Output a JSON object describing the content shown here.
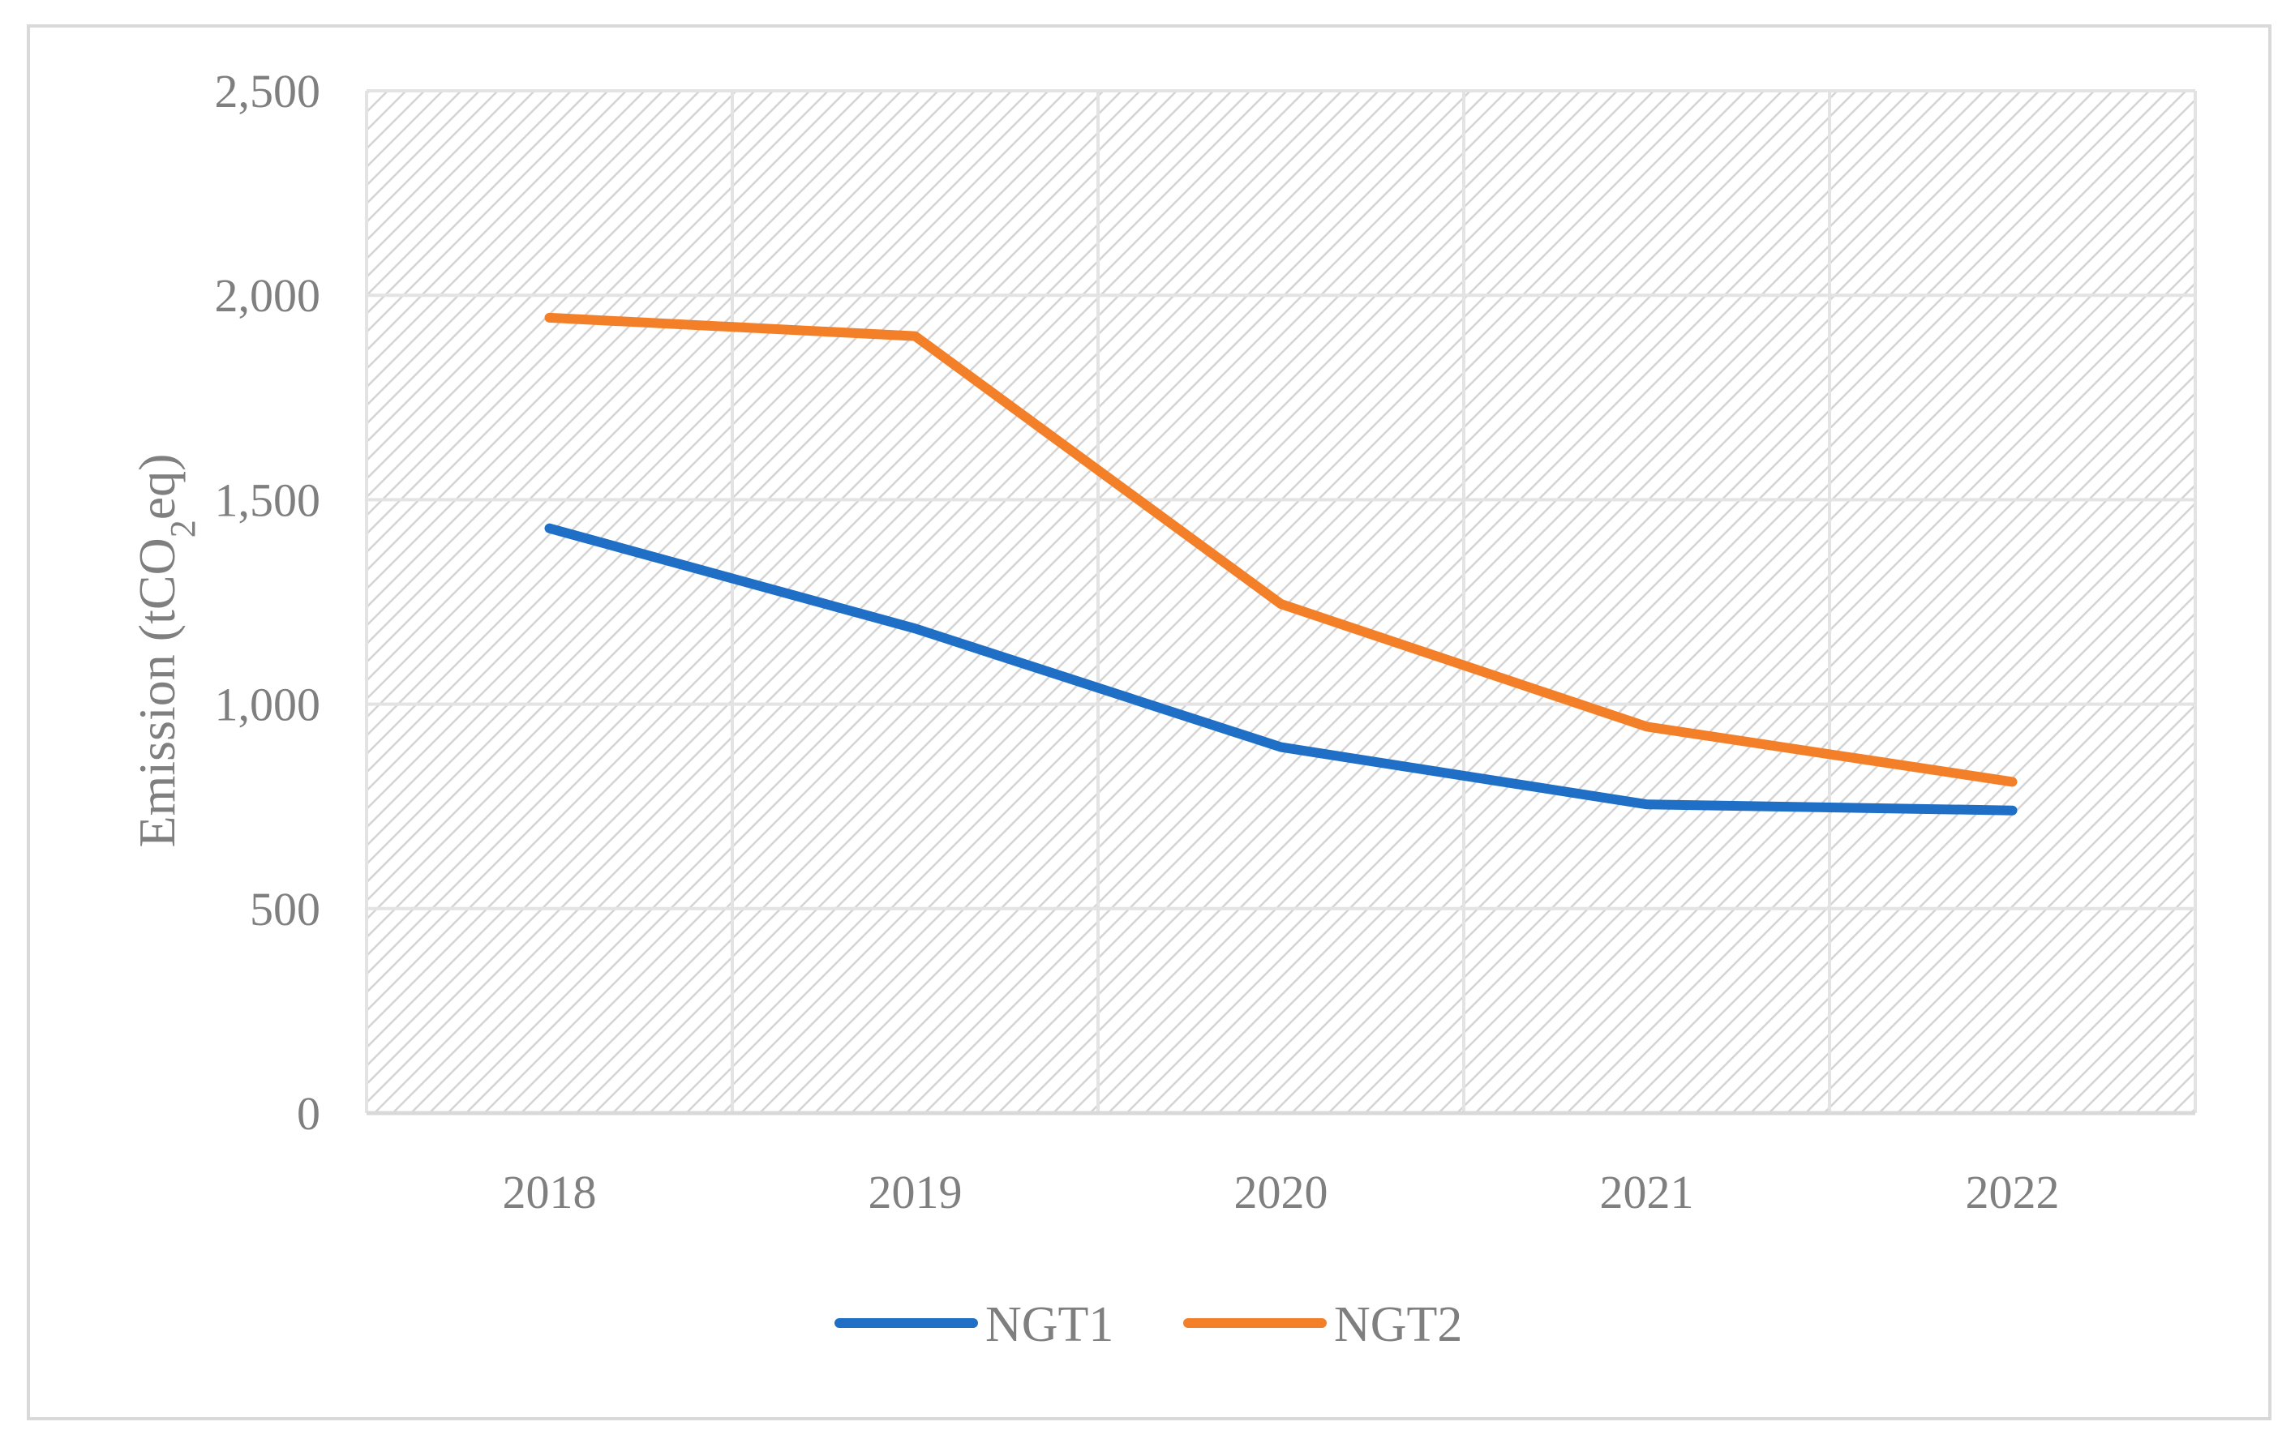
{
  "chart_data": {
    "type": "line",
    "title": "",
    "xlabel": "",
    "ylabel": "Emission (tCO2eq)",
    "ylabel_parts": {
      "pre": "Emission (tCO",
      "sub": "2",
      "post": "eq)"
    },
    "categories": [
      "2018",
      "2019",
      "2020",
      "2021",
      "2022"
    ],
    "series": [
      {
        "name": "NGT1",
        "color": "#1f6fc6",
        "values": [
          1430,
          1185,
          895,
          755,
          740
        ]
      },
      {
        "name": "NGT2",
        "color": "#f47f29",
        "values": [
          1945,
          1900,
          1245,
          945,
          810
        ]
      }
    ],
    "ylim": [
      0,
      2500
    ],
    "yticks": [
      0,
      500,
      1000,
      1500,
      2000,
      2500
    ],
    "ytick_labels": [
      "0",
      "500",
      "1,000",
      "1,500",
      "2,000",
      "2,500"
    ],
    "grid": true,
    "legend": "bottom-center",
    "colors": {
      "grid": "#e3e3e3",
      "axis": "#d9d9d9",
      "hatch": "#d4d4d4",
      "text": "#7f7f7f"
    }
  }
}
